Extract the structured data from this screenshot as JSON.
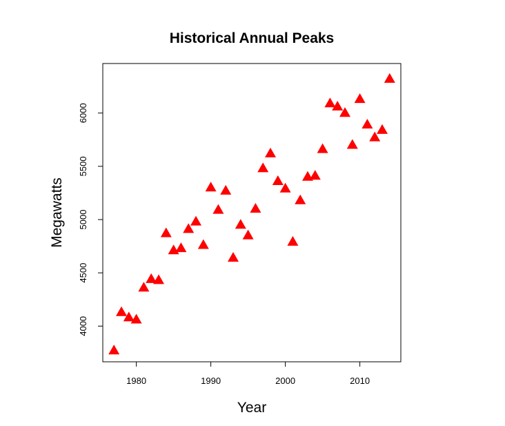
{
  "chart_data": {
    "type": "scatter",
    "title": "Historical Annual Peaks",
    "xlabel": "Year",
    "ylabel": "Megawatts",
    "xlim": [
      1975.5,
      2015.5
    ],
    "ylim": [
      3665,
      6465
    ],
    "x_ticks": [
      1980,
      1990,
      2000,
      2010
    ],
    "y_ticks": [
      4000,
      4500,
      5000,
      5500,
      6000
    ],
    "grid": false,
    "legend": "none",
    "marker": "triangle",
    "marker_color": "#ff0000",
    "series": [
      {
        "x": [
          1977,
          1978,
          1979,
          1980,
          1981,
          1982,
          1983,
          1984,
          1985,
          1986,
          1987,
          1988,
          1989,
          1990,
          1991,
          1992,
          1993,
          1994,
          1995,
          1996,
          1997,
          1998,
          1999,
          2000,
          2001,
          2002,
          2003,
          2004,
          2005,
          2006,
          2007,
          2008,
          2009,
          2010,
          2011,
          2012,
          2013,
          2014
        ],
        "y": [
          3780,
          4140,
          4090,
          4070,
          4370,
          4450,
          4440,
          4880,
          4720,
          4740,
          4920,
          4990,
          4770,
          5310,
          5100,
          5280,
          4650,
          4960,
          4860,
          5110,
          5490,
          5630,
          5370,
          5300,
          4800,
          5190,
          5410,
          5420,
          5670,
          6100,
          6070,
          6010,
          5710,
          6140,
          5900,
          5780,
          5850,
          6330
        ]
      }
    ]
  }
}
